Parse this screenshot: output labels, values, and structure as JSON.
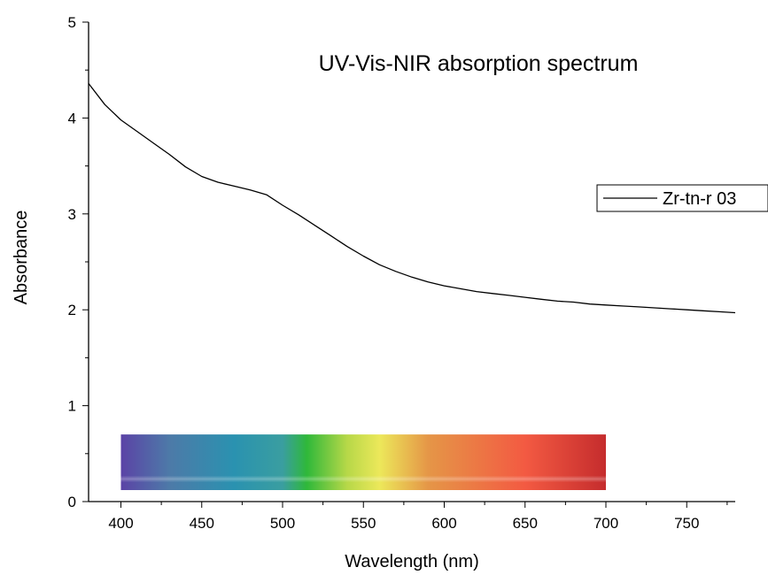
{
  "chart_data": {
    "type": "line",
    "title": "UV-Vis-NIR absorption spectrum",
    "xlabel": "Wavelength (nm)",
    "ylabel": "Absorbance",
    "xlim": [
      380,
      780
    ],
    "ylim": [
      0,
      5
    ],
    "xticks": [
      400,
      450,
      500,
      550,
      600,
      650,
      700,
      750
    ],
    "yticks": [
      0,
      1,
      2,
      3,
      4,
      5
    ],
    "x_minor_step": 25,
    "y_minor_step": 0.5,
    "grid": false,
    "legend_position": "right",
    "series": [
      {
        "name": "Zr-tn-r 03",
        "color": "#000000",
        "x": [
          380,
          390,
          400,
          410,
          420,
          430,
          440,
          450,
          460,
          470,
          480,
          490,
          500,
          510,
          520,
          530,
          540,
          550,
          560,
          570,
          580,
          590,
          600,
          610,
          620,
          630,
          640,
          650,
          660,
          670,
          680,
          690,
          700,
          710,
          720,
          730,
          740,
          750,
          760,
          770,
          780
        ],
        "y": [
          4.36,
          4.14,
          3.98,
          3.86,
          3.74,
          3.62,
          3.49,
          3.39,
          3.33,
          3.29,
          3.25,
          3.2,
          3.09,
          2.99,
          2.88,
          2.77,
          2.66,
          2.56,
          2.47,
          2.4,
          2.34,
          2.29,
          2.25,
          2.22,
          2.19,
          2.17,
          2.15,
          2.13,
          2.11,
          2.09,
          2.08,
          2.06,
          2.05,
          2.04,
          2.03,
          2.02,
          2.01,
          2.0,
          1.99,
          1.98,
          1.97
        ]
      }
    ],
    "spectrum_band": {
      "x_range": [
        400,
        700
      ],
      "y_range": [
        0.12,
        0.7
      ],
      "gradient": [
        {
          "wl": 400,
          "color": "#5b43a6"
        },
        {
          "wl": 430,
          "color": "#4d7aa8"
        },
        {
          "wl": 470,
          "color": "#2a92b0"
        },
        {
          "wl": 500,
          "color": "#3a9ea0"
        },
        {
          "wl": 515,
          "color": "#2fb83a"
        },
        {
          "wl": 540,
          "color": "#b7d848"
        },
        {
          "wl": 560,
          "color": "#ece85a"
        },
        {
          "wl": 590,
          "color": "#e59647"
        },
        {
          "wl": 650,
          "color": "#f35a42"
        },
        {
          "wl": 700,
          "color": "#c52c2d"
        }
      ]
    }
  }
}
